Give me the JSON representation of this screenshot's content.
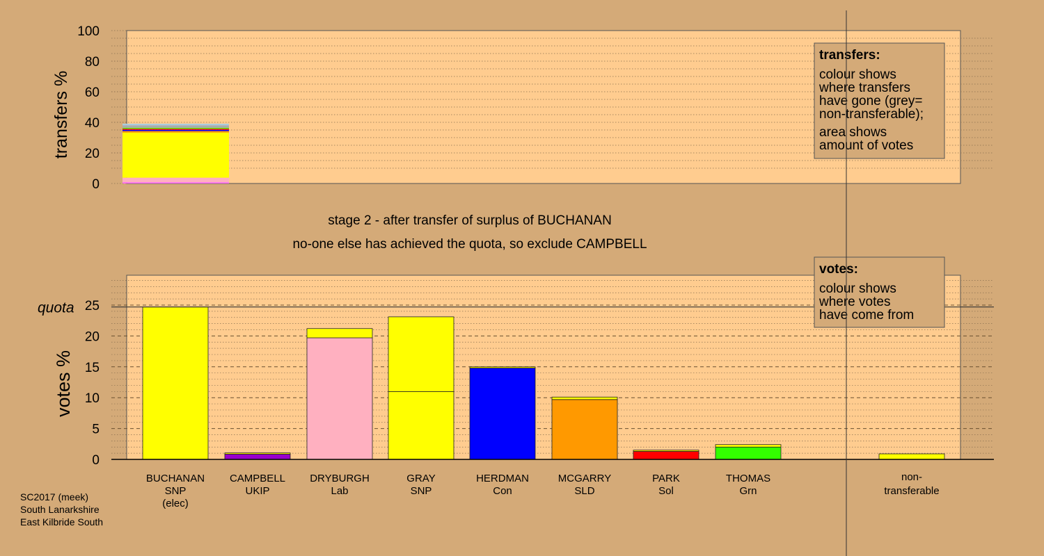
{
  "transfers_chart": {
    "ylabel": "transfers %",
    "yticks": [
      0,
      20,
      40,
      60,
      80,
      100
    ],
    "ylim": [
      0,
      100
    ],
    "legend": {
      "title": "transfers:",
      "lines1": [
        "colour shows",
        "where transfers",
        "have gone (grey=",
        "non-transferable);"
      ],
      "lines2": [
        "area shows",
        "amount of votes"
      ]
    }
  },
  "stage_text": {
    "line1": "stage 2 - after transfer of surplus of BUCHANAN",
    "line2": "no-one else has achieved the quota, so exclude CAMPBELL"
  },
  "votes_chart": {
    "ylabel": "votes %",
    "quota_label": "quota",
    "yticks": [
      0,
      5,
      10,
      15,
      20,
      25
    ],
    "ylim": [
      0,
      25
    ],
    "quota": 24.7,
    "legend": {
      "title": "votes:",
      "lines": [
        "colour shows",
        "where votes",
        "have come from"
      ]
    }
  },
  "footer": {
    "lines": [
      "SC2017 (meek)",
      "South Lanarkshire",
      "East Kilbride South"
    ]
  },
  "chart_data": [
    {
      "type": "bar",
      "name": "transfers",
      "ylabel": "transfers %",
      "ylim": [
        0,
        100
      ],
      "segments": [
        {
          "color": "#ff66ff",
          "value": 0.8
        },
        {
          "color": "#ffb0c0",
          "value": 3.0
        },
        {
          "color": "#ffff00",
          "value": 29.5
        },
        {
          "color": "#ff9900",
          "value": 1.0
        },
        {
          "color": "#0000ff",
          "value": 0.8
        },
        {
          "color": "#ff0000",
          "value": 0.7
        },
        {
          "color": "#44ff00",
          "value": 0.6
        },
        {
          "color": "#aaaaaa",
          "value": 1.6
        },
        {
          "color": "#aaccdd",
          "value": 1.1
        }
      ]
    },
    {
      "type": "bar",
      "name": "votes",
      "ylabel": "votes %",
      "ylim": [
        0,
        25
      ],
      "quota": 24.7,
      "candidates": [
        {
          "name": "BUCHANAN",
          "party": "SNP",
          "note": "(elec)",
          "segments": [
            {
              "color": "#ffff00",
              "value": 24.7
            }
          ]
        },
        {
          "name": "CAMPBELL",
          "party": "UKIP",
          "note": "",
          "segments": [
            {
              "color": "#9900cc",
              "value": 0.85
            },
            {
              "color": "#ffff00",
              "value": 0.2
            }
          ]
        },
        {
          "name": "DRYBURGH",
          "party": "Lab",
          "note": "",
          "segments": [
            {
              "color": "#ffb0c0",
              "value": 19.7
            },
            {
              "color": "#ffff00",
              "value": 1.5
            }
          ]
        },
        {
          "name": "GRAY",
          "party": "SNP",
          "note": "",
          "segments": [
            {
              "color": "#ffff00",
              "value": 11.0
            },
            {
              "color": "#ffff00",
              "value": 12.1
            }
          ]
        },
        {
          "name": "HERDMAN",
          "party": "Con",
          "note": "",
          "segments": [
            {
              "color": "#0000ff",
              "value": 14.8
            },
            {
              "color": "#ffff00",
              "value": 0.2
            }
          ]
        },
        {
          "name": "MCGARRY",
          "party": "SLD",
          "note": "",
          "segments": [
            {
              "color": "#ff9900",
              "value": 9.7
            },
            {
              "color": "#ffff00",
              "value": 0.4
            }
          ]
        },
        {
          "name": "PARK",
          "party": "Sol",
          "note": "",
          "segments": [
            {
              "color": "#ff0000",
              "value": 1.3
            },
            {
              "color": "#ffff00",
              "value": 0.2
            }
          ]
        },
        {
          "name": "THOMAS",
          "party": "Grn",
          "note": "",
          "segments": [
            {
              "color": "#33ff00",
              "value": 2.0
            },
            {
              "color": "#ffff00",
              "value": 0.4
            }
          ]
        }
      ],
      "nontransferable": {
        "label1": "non-",
        "label2": "transferable",
        "value": 0.9,
        "color": "#ffff00"
      }
    }
  ]
}
